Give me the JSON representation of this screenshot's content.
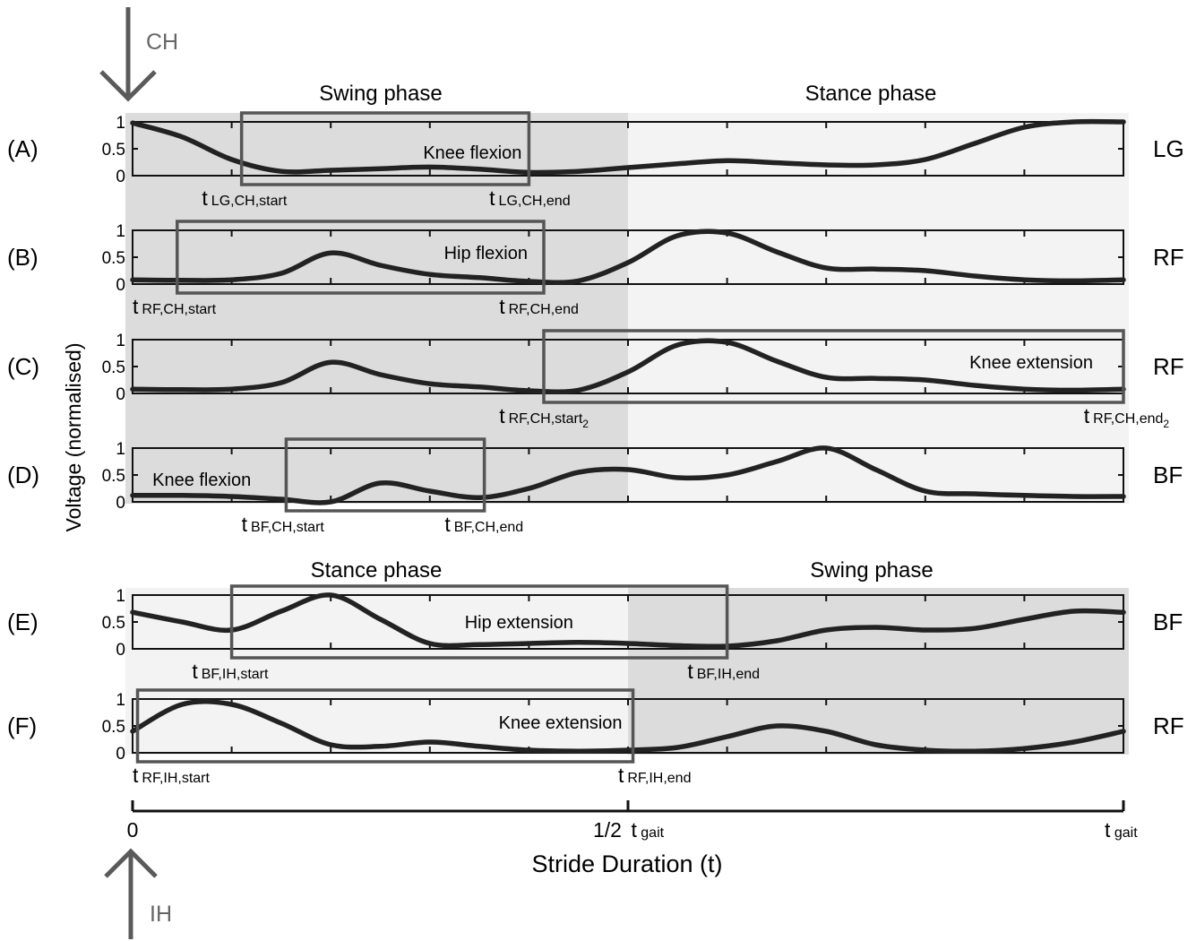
{
  "arrows": {
    "top_label": "CH",
    "bottom_label": "IH"
  },
  "phase_labels": {
    "top_left": "Swing phase",
    "top_right": "Stance phase",
    "bottom_left": "Stance phase",
    "bottom_right": "Swing phase"
  },
  "y_axis_label": "Voltage (normalised)",
  "x_axis": {
    "label": "Stride Duration (t)",
    "tick_zero": "0",
    "tick_half_prefix": "1/2",
    "tick_half_t": "t",
    "tick_half_sub": "gait",
    "tick_end_t": "t",
    "tick_end_sub": "gait"
  },
  "colors": {
    "swing_shade": "#dcdcdc",
    "stance_shade": "#f3f3f3",
    "curve": "#222222",
    "box": "#555555",
    "arrow": "#5a5a5a"
  },
  "chart_data": {
    "type": "line",
    "x_range": [
      0,
      1
    ],
    "ylim": [
      0,
      1
    ],
    "yticks": [
      "0",
      "0.5",
      "1"
    ],
    "panels": [
      {
        "id": "A",
        "label": "(A)",
        "muscle": "LG",
        "swing": [
          0,
          0.5
        ],
        "x": [
          0,
          0.05,
          0.1,
          0.15,
          0.2,
          0.25,
          0.3,
          0.35,
          0.4,
          0.45,
          0.5,
          0.55,
          0.6,
          0.65,
          0.7,
          0.75,
          0.8,
          0.85,
          0.9,
          0.95,
          1.0
        ],
        "y": [
          0.98,
          0.72,
          0.3,
          0.08,
          0.1,
          0.13,
          0.16,
          0.12,
          0.06,
          0.08,
          0.15,
          0.22,
          0.28,
          0.24,
          0.2,
          0.2,
          0.3,
          0.6,
          0.9,
          1.0,
          1.0
        ],
        "box": {
          "x0": 0.11,
          "x1": 0.4,
          "label": "Knee flexion"
        },
        "markers": [
          {
            "x": 0.07,
            "t": "t",
            "sub": "LG,CH,start"
          },
          {
            "x": 0.36,
            "t": "t",
            "sub": "LG,CH,end"
          }
        ]
      },
      {
        "id": "B",
        "label": "(B)",
        "muscle": "RF",
        "swing": [
          0,
          0.5
        ],
        "x": [
          0,
          0.05,
          0.1,
          0.15,
          0.2,
          0.25,
          0.3,
          0.35,
          0.4,
          0.45,
          0.5,
          0.55,
          0.6,
          0.65,
          0.7,
          0.75,
          0.8,
          0.85,
          0.9,
          0.95,
          1.0
        ],
        "y": [
          0.08,
          0.07,
          0.08,
          0.2,
          0.58,
          0.35,
          0.18,
          0.12,
          0.05,
          0.06,
          0.4,
          0.9,
          0.95,
          0.6,
          0.3,
          0.28,
          0.25,
          0.15,
          0.08,
          0.06,
          0.08
        ],
        "box": {
          "x0": 0.045,
          "x1": 0.415,
          "label": "Hip flexion"
        },
        "markers": [
          {
            "x": 0.0,
            "t": "t",
            "sub": "RF,CH,start"
          },
          {
            "x": 0.37,
            "t": "t",
            "sub": "RF,CH,end"
          }
        ]
      },
      {
        "id": "C",
        "label": "(C)",
        "muscle": "RF",
        "swing": [
          0,
          0.5
        ],
        "x": [
          0,
          0.05,
          0.1,
          0.15,
          0.2,
          0.25,
          0.3,
          0.35,
          0.4,
          0.45,
          0.5,
          0.55,
          0.6,
          0.65,
          0.7,
          0.75,
          0.8,
          0.85,
          0.9,
          0.95,
          1.0
        ],
        "y": [
          0.08,
          0.07,
          0.08,
          0.2,
          0.58,
          0.35,
          0.18,
          0.12,
          0.05,
          0.06,
          0.4,
          0.9,
          0.95,
          0.6,
          0.3,
          0.28,
          0.25,
          0.15,
          0.08,
          0.06,
          0.08
        ],
        "box": {
          "x0": 0.415,
          "x1": 1.0,
          "label": "Knee extension"
        },
        "markers": [
          {
            "x": 0.37,
            "t": "t",
            "sub": "RF,CH,start",
            "subsub": "2"
          },
          {
            "x": 0.96,
            "t": "t",
            "sub": "RF,CH,end",
            "subsub": "2"
          }
        ]
      },
      {
        "id": "D",
        "label": "(D)",
        "muscle": "BF",
        "swing": [
          0,
          0.5
        ],
        "x": [
          0,
          0.05,
          0.1,
          0.15,
          0.2,
          0.25,
          0.3,
          0.35,
          0.4,
          0.45,
          0.5,
          0.55,
          0.6,
          0.65,
          0.7,
          0.75,
          0.8,
          0.85,
          0.9,
          0.95,
          1.0
        ],
        "y": [
          0.12,
          0.12,
          0.1,
          0.05,
          0.0,
          0.35,
          0.2,
          0.08,
          0.25,
          0.55,
          0.6,
          0.45,
          0.5,
          0.75,
          1.0,
          0.6,
          0.2,
          0.15,
          0.12,
          0.1,
          0.1
        ],
        "box": {
          "x0": 0.155,
          "x1": 0.355,
          "label": ""
        },
        "side_label": "Knee flexion",
        "markers": [
          {
            "x": 0.11,
            "t": "t",
            "sub": "BF,CH,start"
          },
          {
            "x": 0.315,
            "t": "t",
            "sub": "BF,CH,end"
          }
        ]
      },
      {
        "id": "E",
        "label": "(E)",
        "muscle": "BF",
        "swing": [
          0.5,
          1.0
        ],
        "x": [
          0,
          0.05,
          0.1,
          0.15,
          0.2,
          0.25,
          0.3,
          0.35,
          0.4,
          0.45,
          0.5,
          0.55,
          0.6,
          0.65,
          0.7,
          0.75,
          0.8,
          0.85,
          0.9,
          0.95,
          1.0
        ],
        "y": [
          0.68,
          0.5,
          0.35,
          0.7,
          1.0,
          0.55,
          0.1,
          0.08,
          0.1,
          0.12,
          0.1,
          0.06,
          0.05,
          0.15,
          0.35,
          0.4,
          0.35,
          0.38,
          0.55,
          0.7,
          0.68
        ],
        "box": {
          "x0": 0.1,
          "x1": 0.6,
          "label": "Hip extension"
        },
        "markers": [
          {
            "x": 0.06,
            "t": "t",
            "sub": "BF,IH,start"
          },
          {
            "x": 0.56,
            "t": "t",
            "sub": "BF,IH,end"
          }
        ]
      },
      {
        "id": "F",
        "label": "(F)",
        "muscle": "RF",
        "swing": [
          0.5,
          1.0
        ],
        "x": [
          0,
          0.05,
          0.1,
          0.15,
          0.2,
          0.25,
          0.3,
          0.35,
          0.4,
          0.45,
          0.5,
          0.55,
          0.6,
          0.65,
          0.7,
          0.75,
          0.8,
          0.85,
          0.9,
          0.95,
          1.0
        ],
        "y": [
          0.4,
          0.9,
          0.9,
          0.55,
          0.15,
          0.12,
          0.2,
          0.12,
          0.05,
          0.03,
          0.05,
          0.1,
          0.3,
          0.5,
          0.4,
          0.15,
          0.05,
          0.03,
          0.08,
          0.2,
          0.4
        ],
        "box": {
          "x0": 0.005,
          "x1": 0.505,
          "label": "Knee extension"
        },
        "markers": [
          {
            "x": 0.0,
            "t": "t",
            "sub": "RF,IH,start"
          },
          {
            "x": 0.49,
            "t": "t",
            "sub": "RF,IH,end"
          }
        ]
      }
    ]
  }
}
